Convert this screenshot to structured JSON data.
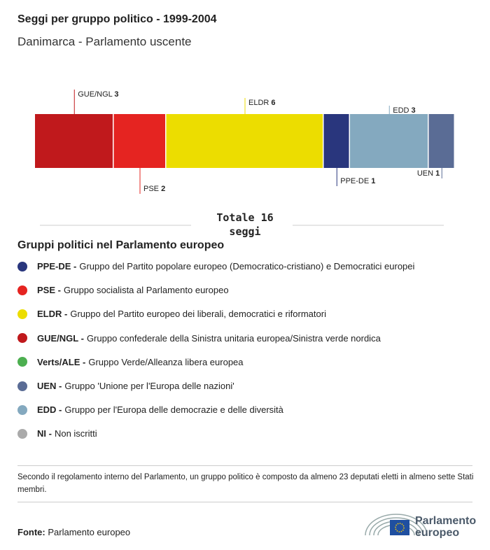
{
  "header": {
    "title": "Seggi per gruppo politico - 1999-2004",
    "subtitle": "Danimarca - Parlamento uscente"
  },
  "chart_data": {
    "type": "bar",
    "stacked": true,
    "orientation": "horizontal",
    "title": "Seggi per gruppo politico - 1999-2004",
    "total_label": "Totale 16 seggi",
    "total": 16,
    "segments": [
      {
        "name": "GUE/NGL",
        "value": 3,
        "color": "#c0191c",
        "label_pos": "top"
      },
      {
        "name": "PSE",
        "value": 2,
        "color": "#e52421",
        "label_pos": "bottom"
      },
      {
        "name": "ELDR",
        "value": 6,
        "color": "#ecdd00",
        "label_pos": "top"
      },
      {
        "name": "PPE-DE",
        "value": 1,
        "color": "#29367d",
        "label_pos": "bottom"
      },
      {
        "name": "EDD",
        "value": 3,
        "color": "#84a9bf",
        "label_pos": "top"
      },
      {
        "name": "UEN",
        "value": 1,
        "color": "#5a6c95",
        "label_pos": "bottom"
      }
    ]
  },
  "legend": {
    "title": "Gruppi politici nel Parlamento europeo",
    "items": [
      {
        "abbr": "PPE-DE -",
        "desc": "Gruppo del Partito popolare europeo (Democratico-cristiano) e Democratici europei",
        "color": "#29367d"
      },
      {
        "abbr": "PSE -",
        "desc": "Gruppo socialista al Parlamento europeo",
        "color": "#e52421"
      },
      {
        "abbr": "ELDR -",
        "desc": "Gruppo del Partito europeo dei liberali, democratici e riformatori",
        "color": "#ecdd00"
      },
      {
        "abbr": "GUE/NGL -",
        "desc": "Gruppo confederale della Sinistra unitaria europea/Sinistra verde nordica",
        "color": "#c0191c"
      },
      {
        "abbr": "Verts/ALE -",
        "desc": "Gruppo Verde/Alleanza libera europea",
        "color": "#4caf50"
      },
      {
        "abbr": "UEN -",
        "desc": "Gruppo 'Unione per l'Europa delle nazioni'",
        "color": "#5a6c95"
      },
      {
        "abbr": "EDD -",
        "desc": "Gruppo per l'Europa delle democrazie e delle diversità",
        "color": "#84a9bf"
      },
      {
        "abbr": "NI -",
        "desc": "Non iscritti",
        "color": "#aaaaaa"
      }
    ]
  },
  "note": "Secondo il regolamento interno del Parlamento, un gruppo politico è composto da almeno 23 deputati eletti in almeno sette Stati membri.",
  "source": {
    "label": "Fonte:",
    "value": "Parlamento europeo"
  },
  "logo": {
    "text": "Parlamento europeo"
  }
}
